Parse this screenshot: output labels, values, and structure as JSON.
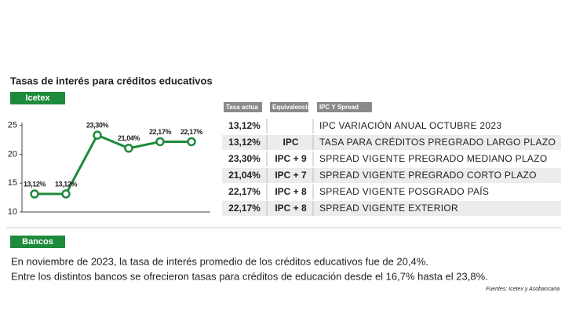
{
  "title": "Tasas de interés para créditos educativos",
  "chart_data": {
    "type": "line",
    "label": "Icetex",
    "categories": [
      null,
      null,
      null,
      null,
      null,
      null
    ],
    "values": [
      13.12,
      13.12,
      23.3,
      21.04,
      22.17,
      22.17
    ],
    "value_labels": [
      "13,12%",
      "13,12%",
      "23,30%",
      "21,04%",
      "22,17%",
      "22,17%"
    ],
    "color": "#1e8a3c",
    "ylim": [
      10,
      25.5
    ],
    "yticks": [
      10,
      15,
      20,
      25
    ],
    "grid": false
  },
  "table": {
    "headers": [
      "Tasa actua",
      "Equivalencia",
      "IPC Y Spread"
    ],
    "rows": [
      [
        "13,12%",
        "",
        "IPC VARIACIÓN ANUAL OCTUBRE 2023"
      ],
      [
        "13,12%",
        "IPC",
        "TASA PARA CRÉDITOS PREGRADO LARGO PLAZO"
      ],
      [
        "23,30%",
        "IPC + 9",
        "SPREAD VIGENTE PREGRADO MEDIANO PLAZO"
      ],
      [
        "21,04%",
        "IPC + 7",
        "SPREAD VIGENTE PREGRADO CORTO PLAZO"
      ],
      [
        "22,17%",
        "IPC + 8",
        "SPREAD VIGENTE POSGRADO PAÍS"
      ],
      [
        "22,17%",
        "IPC + 8",
        "SPREAD VIGENTE EXTERIOR"
      ]
    ]
  },
  "banks": {
    "label": "Bancos",
    "text": [
      "En noviembre de 2023, la tasa de interés promedio de los créditos educativos fue de 20,4%.",
      "Entre los distintos bancos se ofrecieron tasas para créditos de educación desde el 16,7% hasta el 23,8%."
    ],
    "source": "Fuentes: Icetex y Asobancaria"
  }
}
